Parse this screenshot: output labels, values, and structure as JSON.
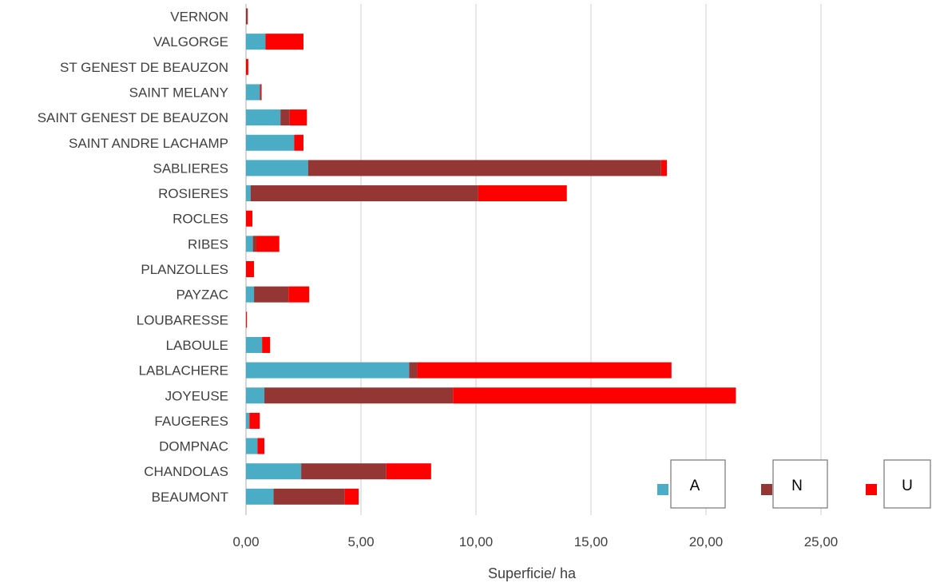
{
  "chart_data": {
    "type": "bar",
    "orientation": "horizontal",
    "stacked": true,
    "categories": [
      "VERNON",
      "VALGORGE",
      "ST GENEST DE BEAUZON",
      "SAINT MELANY",
      "SAINT GENEST DE BEAUZON",
      "SAINT ANDRE LACHAMP",
      "SABLIERES",
      "ROSIERES",
      "ROCLES",
      "RIBES",
      "PLANZOLLES",
      "PAYZAC",
      "LOUBARESSE",
      "LABOULE",
      "LABLACHERE",
      "JOYEUSE",
      "FAUGERES",
      "DOMPNAC",
      "CHANDOLAS",
      "BEAUMONT"
    ],
    "series": [
      {
        "name": "A",
        "color": "#4BACC6",
        "values": [
          0.0,
          0.85,
          0.0,
          0.6,
          1.5,
          2.1,
          2.7,
          0.2,
          0.0,
          0.3,
          0.0,
          0.35,
          0.0,
          0.7,
          7.1,
          0.8,
          0.15,
          0.5,
          2.4,
          1.2
        ]
      },
      {
        "name": "N",
        "color": "#943634",
        "values": [
          0.08,
          0.0,
          0.0,
          0.04,
          0.4,
          0.0,
          15.35,
          9.9,
          0.0,
          0.15,
          0.0,
          1.5,
          0.0,
          0.0,
          0.35,
          8.2,
          0.0,
          0.0,
          3.7,
          3.1
        ]
      },
      {
        "name": "U",
        "color": "#FF0000",
        "values": [
          0.0,
          1.65,
          0.1,
          0.04,
          0.75,
          0.4,
          0.25,
          3.85,
          0.28,
          1.0,
          0.35,
          0.9,
          0.04,
          0.35,
          11.05,
          12.3,
          0.45,
          0.3,
          1.95,
          0.6
        ]
      }
    ],
    "xlabel": "Superficie/ ha",
    "ylabel": "",
    "xlim": [
      0,
      30
    ],
    "xticks": [
      0,
      5,
      10,
      15,
      20,
      25
    ],
    "xtick_labels": [
      "0,00",
      "5,00",
      "10,00",
      "15,00",
      "20,00",
      "25,00"
    ],
    "grid": "vertical",
    "legend_position": "bottom-right"
  }
}
